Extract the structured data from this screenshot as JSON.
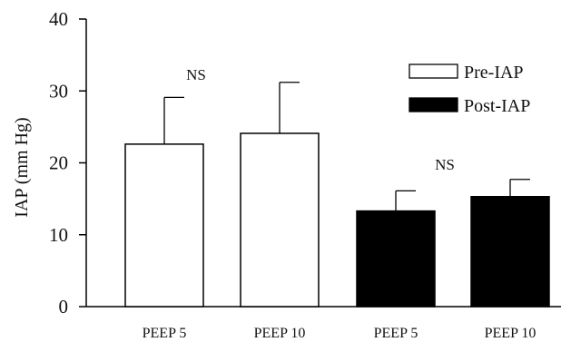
{
  "chart_data": {
    "type": "bar",
    "title": "",
    "xlabel": "",
    "ylabel": "IAP (mm Hg)",
    "ylim": [
      0,
      40
    ],
    "yticks": [
      0,
      10,
      20,
      30,
      40
    ],
    "categories": [
      "PEEP 5",
      "PEEP 10",
      "PEEP 5",
      "PEEP 10"
    ],
    "values": [
      22.6,
      24.1,
      13.3,
      15.3
    ],
    "error_upper": [
      29.1,
      31.2,
      16.1,
      17.7
    ],
    "groups": [
      "Pre-IAP",
      "Pre-IAP",
      "Post-IAP",
      "Post-IAP"
    ],
    "group_colors": {
      "Pre-IAP": "#ffffff",
      "Post-IAP": "#000000"
    },
    "grid": false,
    "legend": {
      "placement": "top-right",
      "entries": [
        {
          "label": "Pre-IAP",
          "fill": "#ffffff"
        },
        {
          "label": "Post-IAP",
          "fill": "#000000"
        }
      ]
    },
    "annotations": [
      {
        "text": "NS",
        "between": [
          0,
          1
        ]
      },
      {
        "text": "NS",
        "between": [
          2,
          3
        ]
      }
    ]
  }
}
